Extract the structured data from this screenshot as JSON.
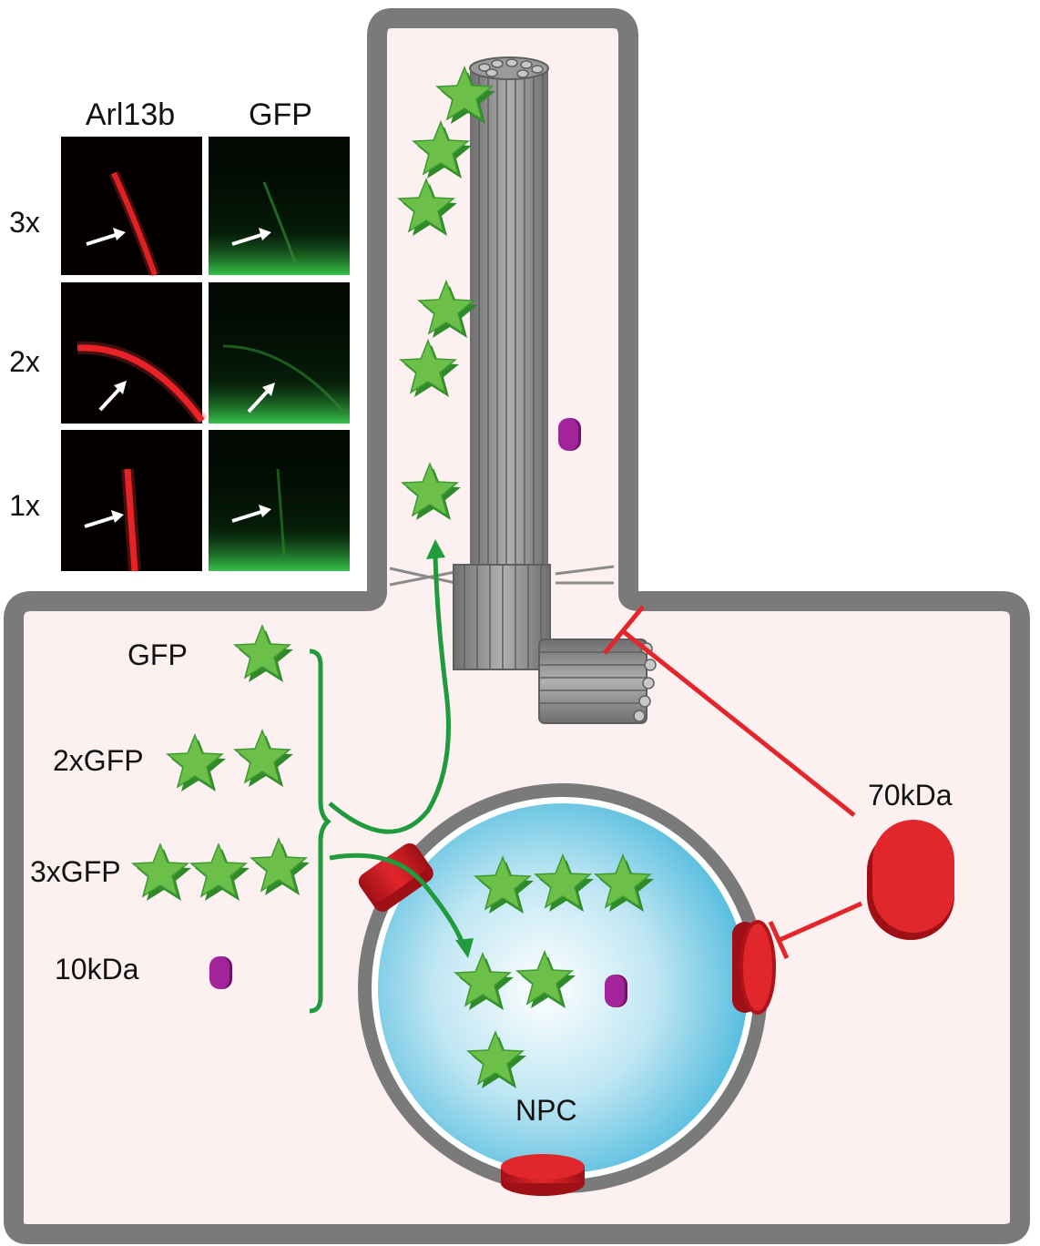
{
  "panel": {
    "column_headers": [
      "Arl13b",
      "GFP"
    ],
    "row_labels": [
      "3x",
      "2x",
      "1x"
    ]
  },
  "legend": {
    "gfp": "GFP",
    "gfp2": "2xGFP",
    "gfp3": "3xGFP",
    "kda10": "10kDa"
  },
  "labels": {
    "kda70": "70kDa",
    "npc": "NPC"
  },
  "colors": {
    "cell_fill": "#fcf0f0",
    "membrane": "#7a7a7a",
    "nucleus": "#8fd3ea",
    "npc_red": "#d51f26",
    "star_green": "#62bb46",
    "arrow_green": "#1f9a3c",
    "inhibit_red": "#e2262b",
    "small_protein": "#9b1d8f"
  }
}
